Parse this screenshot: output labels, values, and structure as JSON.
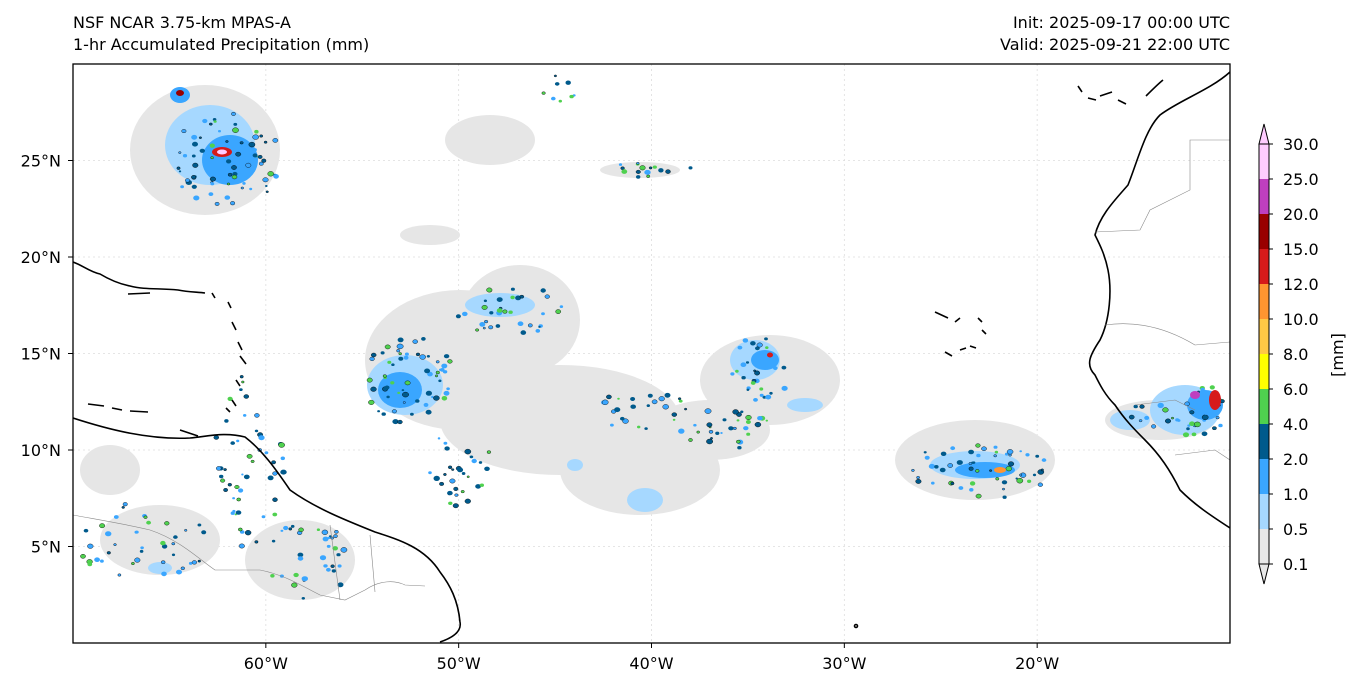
{
  "header": {
    "title_line1": "NSF NCAR 3.75-km MPAS-A",
    "title_line2": "1-hr Accumulated Precipitation (mm)",
    "init_label": "Init: 2025-09-17 00:00 UTC",
    "valid_label": "Valid: 2025-09-21 22:00 UTC"
  },
  "map": {
    "lon_range": [
      -70,
      -10
    ],
    "lat_range": [
      0,
      30
    ],
    "lon_ticks": [
      {
        "value": -60,
        "label": "60°W"
      },
      {
        "value": -50,
        "label": "50°W"
      },
      {
        "value": -40,
        "label": "40°W"
      },
      {
        "value": -30,
        "label": "30°W"
      },
      {
        "value": -20,
        "label": "20°W"
      }
    ],
    "lat_ticks": [
      {
        "value": 25,
        "label": "25°N"
      },
      {
        "value": 20,
        "label": "20°N"
      },
      {
        "value": 15,
        "label": "15°N"
      },
      {
        "value": 10,
        "label": "10°N"
      },
      {
        "value": 5,
        "label": "5°N"
      }
    ],
    "colorbar": {
      "unit_label": "[mm]",
      "levels": [
        "0.1",
        "0.5",
        "1.0",
        "2.0",
        "4.0",
        "6.0",
        "8.0",
        "10.0",
        "12.0",
        "15.0",
        "20.0",
        "25.0",
        "30.0"
      ],
      "colors": [
        "#e8e8e8",
        "#a6d8ff",
        "#3aa6ff",
        "#005a8c",
        "#4fd14f",
        "#ffff00",
        "#ffc845",
        "#ff9530",
        "#d61a1a",
        "#990000",
        "#bf3fbf",
        "#ffccff"
      ]
    }
  }
}
